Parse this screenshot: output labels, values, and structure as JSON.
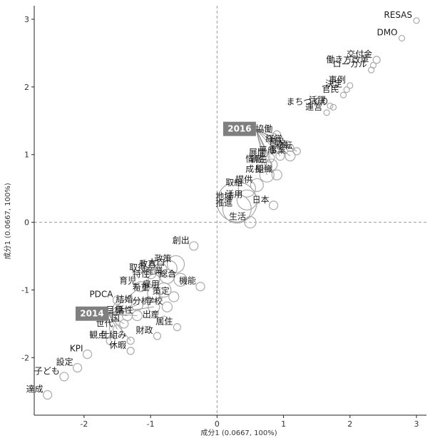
{
  "chart_data": {
    "type": "scatter",
    "xlabel": "成分1 (0.0667, 100%)",
    "ylabel": "成分1 (0.0667, 100%)",
    "xlim": [
      -2.75,
      3.15
    ],
    "ylim": [
      -2.85,
      3.2
    ],
    "x_ticks": [
      -2,
      -1,
      0,
      1,
      2,
      3
    ],
    "y_ticks": [
      -2,
      -1,
      0,
      1,
      2,
      3
    ],
    "grid": false,
    "reference_lines": {
      "x": 0,
      "y": 0,
      "style": "dashed"
    },
    "colors": {
      "point_stroke": "#aaaaaa",
      "year_box": "#7f7f7f",
      "axis": "#222222"
    },
    "year_labels": [
      {
        "label": "2016",
        "x": 0.8,
        "y": 1.38
      },
      {
        "label": "2014",
        "x": -1.42,
        "y": -1.35
      }
    ],
    "points": [
      {
        "word": "RESAS",
        "x": 3.0,
        "y": 2.98,
        "size": 4
      },
      {
        "word": "DMO",
        "x": 2.78,
        "y": 2.72,
        "size": 4
      },
      {
        "word": "交付金",
        "x": 2.4,
        "y": 2.4,
        "size": 5
      },
      {
        "word": "ローカル",
        "x": 2.32,
        "y": 2.25,
        "size": 4
      },
      {
        "word": "働き方改革",
        "x": 2.35,
        "y": 2.32,
        "size": 4
      },
      {
        "word": "官民",
        "x": 1.9,
        "y": 1.88,
        "size": 4
      },
      {
        "word": "決定",
        "x": 1.95,
        "y": 1.96,
        "size": 4
      },
      {
        "word": "事例",
        "x": 2.0,
        "y": 2.02,
        "size": 4
      },
      {
        "word": "活躍",
        "x": 1.7,
        "y": 1.72,
        "size": 4
      },
      {
        "word": "まちづくり",
        "x": 1.75,
        "y": 1.7,
        "size": 4
      },
      {
        "word": "運営",
        "x": 1.65,
        "y": 1.62,
        "size": 4
      },
      {
        "word": "協働",
        "x": 0.9,
        "y": 1.3,
        "size": 5
      },
      {
        "word": "経営",
        "x": 1.05,
        "y": 1.15,
        "size": 5
      },
      {
        "word": "普及",
        "x": 1.1,
        "y": 1.1,
        "size": 5
      },
      {
        "word": "移転",
        "x": 1.2,
        "y": 1.05,
        "size": 5
      },
      {
        "word": "平成",
        "x": 0.95,
        "y": 0.98,
        "size": 6
      },
      {
        "word": "事業",
        "x": 1.1,
        "y": 0.98,
        "size": 7
      },
      {
        "word": "展開",
        "x": 0.8,
        "y": 0.95,
        "size": 6
      },
      {
        "word": "情報",
        "x": 0.75,
        "y": 0.85,
        "size": 7
      },
      {
        "word": "創生",
        "x": 0.82,
        "y": 0.85,
        "size": 8
      },
      {
        "word": "成長",
        "x": 0.75,
        "y": 0.7,
        "size": 10
      },
      {
        "word": "組織",
        "x": 0.9,
        "y": 0.7,
        "size": 7
      },
      {
        "word": "提供",
        "x": 0.6,
        "y": 0.55,
        "size": 9
      },
      {
        "word": "取組",
        "x": 0.45,
        "y": 0.5,
        "size": 12
      },
      {
        "word": "地域",
        "x": 0.3,
        "y": 0.3,
        "size": 28
      },
      {
        "word": "活用",
        "x": 0.45,
        "y": 0.33,
        "size": 14
      },
      {
        "word": "日本",
        "x": 0.85,
        "y": 0.25,
        "size": 6
      },
      {
        "word": "推進",
        "x": 0.3,
        "y": 0.2,
        "size": 20
      },
      {
        "word": "生活",
        "x": 0.5,
        "y": 0.0,
        "size": 8
      },
      {
        "word": "創出",
        "x": -0.35,
        "y": -0.35,
        "size": 6
      },
      {
        "word": "政策",
        "x": -0.62,
        "y": -0.62,
        "size": 12
      },
      {
        "word": "教育",
        "x": -0.85,
        "y": -0.7,
        "size": 9
      },
      {
        "word": "人口",
        "x": -0.72,
        "y": -0.68,
        "size": 11
      },
      {
        "word": "取得",
        "x": -1.0,
        "y": -0.75,
        "size": 8
      },
      {
        "word": "特性",
        "x": -0.95,
        "y": -0.85,
        "size": 8
      },
      {
        "word": "産業",
        "x": -0.75,
        "y": -0.8,
        "size": 10
      },
      {
        "word": "育児",
        "x": -1.15,
        "y": -0.95,
        "size": 7
      },
      {
        "word": "総合",
        "x": -0.55,
        "y": -0.85,
        "size": 9
      },
      {
        "word": "機能",
        "x": -0.25,
        "y": -0.95,
        "size": 6
      },
      {
        "word": "希望",
        "x": -0.95,
        "y": -1.05,
        "size": 9
      },
      {
        "word": "雇用",
        "x": -0.8,
        "y": -1.0,
        "size": 10
      },
      {
        "word": "策定",
        "x": -0.65,
        "y": -1.1,
        "size": 7
      },
      {
        "word": "PDCA",
        "x": -1.5,
        "y": -1.15,
        "size": 6
      },
      {
        "word": "結婚",
        "x": -1.2,
        "y": -1.22,
        "size": 8
      },
      {
        "word": "分析",
        "x": -0.95,
        "y": -1.25,
        "size": 8
      },
      {
        "word": "学校",
        "x": -0.75,
        "y": -1.25,
        "size": 7
      },
      {
        "word": "目標",
        "x": -1.35,
        "y": -1.38,
        "size": 7
      },
      {
        "word": "活性",
        "x": -1.2,
        "y": -1.38,
        "size": 7
      },
      {
        "word": "出産",
        "x": -0.8,
        "y": -1.45,
        "size": 6
      },
      {
        "word": "居住",
        "x": -0.6,
        "y": -1.55,
        "size": 5
      },
      {
        "word": "国",
        "x": -1.4,
        "y": -1.5,
        "size": 6
      },
      {
        "word": "世代",
        "x": -1.5,
        "y": -1.58,
        "size": 6
      },
      {
        "word": "財政",
        "x": -0.9,
        "y": -1.68,
        "size": 5
      },
      {
        "word": "観点",
        "x": -1.6,
        "y": -1.75,
        "size": 6
      },
      {
        "word": "仕組み",
        "x": -1.3,
        "y": -1.75,
        "size": 5
      },
      {
        "word": "KPI",
        "x": -1.95,
        "y": -1.95,
        "size": 6
      },
      {
        "word": "休暇",
        "x": -1.3,
        "y": -1.9,
        "size": 5
      },
      {
        "word": "設定",
        "x": -2.1,
        "y": -2.15,
        "size": 6
      },
      {
        "word": "子ども",
        "x": -2.3,
        "y": -2.28,
        "size": 6
      },
      {
        "word": "達成",
        "x": -2.55,
        "y": -2.55,
        "size": 6
      }
    ]
  }
}
